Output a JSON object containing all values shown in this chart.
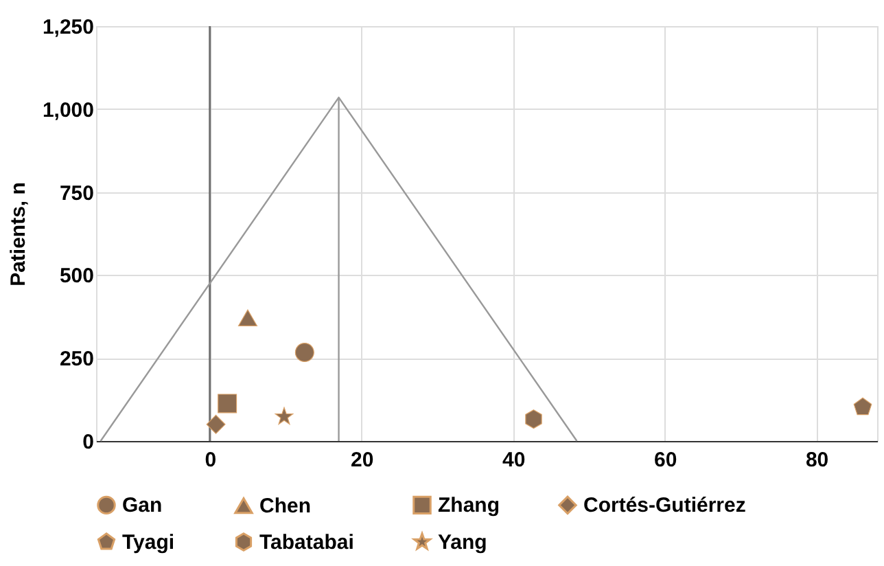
{
  "chart_data": {
    "type": "scatter",
    "ylabel": "Patients, n",
    "xlim": [
      -15,
      88
    ],
    "ylim": [
      0,
      1250
    ],
    "xticks": [
      0,
      20,
      40,
      60,
      80
    ],
    "yticks": [
      0,
      {
        "value": 250,
        "label": "250"
      },
      {
        "value": 500,
        "label": "500"
      },
      {
        "value": 750,
        "label": "750"
      },
      {
        "value": 1000,
        "label": "1,000"
      },
      {
        "value": 1250,
        "label": "1,250"
      }
    ],
    "grid": true,
    "legend": "bottom",
    "ref_lines": [
      {
        "axis": "x",
        "value": 0,
        "color": "#707070"
      }
    ],
    "series": [
      {
        "name": "Gan",
        "marker": "circle",
        "x": [
          12.5
        ],
        "values": [
          267
        ],
        "color": "#8b6b50"
      },
      {
        "name": "Chen",
        "marker": "triangle",
        "x": [
          5.0
        ],
        "values": [
          371
        ],
        "color": "#8b6b50"
      },
      {
        "name": "Zhang",
        "marker": "square",
        "x": [
          2.3
        ],
        "values": [
          113
        ],
        "color": "#8b6b50"
      },
      {
        "name": "Cortés-Gutiérrez",
        "marker": "diamond",
        "x": [
          0.8
        ],
        "values": [
          50
        ],
        "color": "#8b6b50"
      },
      {
        "name": "Tyagi",
        "x": [
          86.1
        ],
        "values": [
          102
        ],
        "color": "#8b6b50"
      },
      {
        "name": "Tabatabai",
        "x": [
          42.7
        ],
        "values": [
          66
        ],
        "color": "#8b6b50"
      },
      {
        "name": "Yang",
        "marker": "star",
        "x": [
          9.8
        ],
        "values": [
          73
        ],
        "color": "#8b6b50"
      },
      {
        "type": "line",
        "x": [
          -14.4,
          17.0,
          48.4
        ],
        "values": [
          0,
          1035,
          0
        ],
        "color": "#999999"
      },
      {
        "type": "line",
        "x": [
          17.0,
          17.0
        ],
        "values": [
          0,
          1035
        ],
        "color": "#999999"
      }
    ]
  }
}
